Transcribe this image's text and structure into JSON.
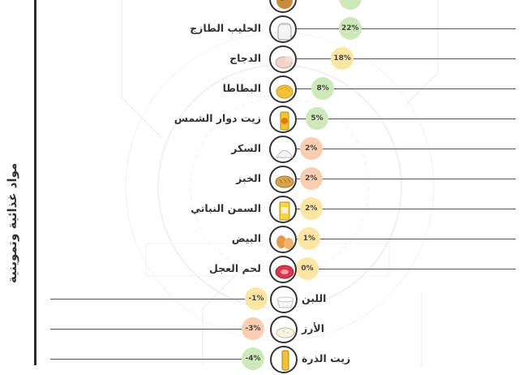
{
  "chart_data": {
    "type": "bar",
    "title": "",
    "xlabel": "",
    "ylabel": "",
    "section_label": "مواد غذائية وتموينية",
    "colors": {
      "up_high": "#cde8b9",
      "up_mid": "#fde6a3",
      "up_low": "#f8cdb0",
      "down": "#f7d5bd",
      "down_mid": "#fde6a3",
      "neutral": "#fde6a3"
    },
    "rows": [
      {
        "label": "",
        "value_text": "",
        "value": null,
        "icon": "food-icon",
        "color": "#cde8b9",
        "partial": "top"
      },
      {
        "label": "الحليب الطازج",
        "value_text": "22%",
        "value": 22,
        "icon": "milk-jug-icon",
        "color": "#cde8b9"
      },
      {
        "label": "الدجاج",
        "value_text": "18%",
        "value": 18,
        "icon": "chicken-icon",
        "color": "#fde6a3"
      },
      {
        "label": "البطاطا",
        "value_text": "8%",
        "value": 8,
        "icon": "potato-icon",
        "color": "#cde8b9"
      },
      {
        "label": "زيت دوار الشمس",
        "value_text": "5%",
        "value": 5,
        "icon": "sunflower-oil-icon",
        "color": "#cde8b9"
      },
      {
        "label": "السكر",
        "value_text": "2%",
        "value": 2,
        "icon": "sugar-icon",
        "color": "#f8cdb0"
      },
      {
        "label": "الخبز",
        "value_text": "2%",
        "value": 2,
        "icon": "bread-icon",
        "color": "#f8cdb0"
      },
      {
        "label": "السمن النباتي",
        "value_text": "2%",
        "value": 2,
        "icon": "ghee-icon",
        "color": "#fde6a3"
      },
      {
        "label": "البيض",
        "value_text": "1%",
        "value": 1,
        "icon": "egg-icon",
        "color": "#fde6a3"
      },
      {
        "label": "لحم العجل",
        "value_text": "0%",
        "value": 0,
        "icon": "beef-icon",
        "color": "#fde6a3"
      },
      {
        "label": "اللبن",
        "value_text": "-1%",
        "value": -1,
        "icon": "yogurt-icon",
        "color": "#fde6a3"
      },
      {
        "label": "الأرز",
        "value_text": "-3%",
        "value": -3,
        "icon": "rice-icon",
        "color": "#f8cdb0"
      },
      {
        "label": "زيت الذرة",
        "value_text": "-4%",
        "value": -4,
        "icon": "oil-bottle-icon",
        "color": "#cde8b9",
        "partial": "bottom"
      }
    ]
  }
}
